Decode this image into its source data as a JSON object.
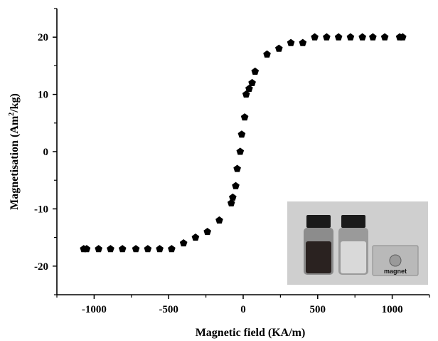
{
  "chart_data": {
    "type": "scatter",
    "xlabel": "Magnetic field (KA/m)",
    "ylabel_parts": [
      "Magnetisation (Am",
      "2",
      "/kg)"
    ],
    "xlim": [
      -1250,
      1250
    ],
    "ylim": [
      -25,
      25
    ],
    "xticks": [
      -1000,
      -500,
      0,
      500,
      1000
    ],
    "yticks": [
      -20,
      -10,
      0,
      10,
      20
    ],
    "grid": false,
    "marker": "pentagon",
    "marker_color": "#000000",
    "series": [
      {
        "points": [
          [
            -1070,
            -17
          ],
          [
            -1050,
            -17
          ],
          [
            -970,
            -17
          ],
          [
            -890,
            -17
          ],
          [
            -810,
            -17
          ],
          [
            -720,
            -17
          ],
          [
            -640,
            -17
          ],
          [
            -560,
            -17
          ],
          [
            -480,
            -17
          ],
          [
            -400,
            -16
          ],
          [
            -320,
            -15
          ],
          [
            -240,
            -14
          ],
          [
            -160,
            -12
          ],
          [
            -80,
            -9
          ],
          [
            -70,
            -8
          ],
          [
            -50,
            -6
          ],
          [
            -40,
            -3
          ],
          [
            -20,
            0
          ],
          [
            -10,
            3
          ],
          [
            10,
            6
          ],
          [
            20,
            10
          ],
          [
            40,
            11
          ],
          [
            60,
            12
          ],
          [
            80,
            14
          ],
          [
            160,
            17
          ],
          [
            240,
            18
          ],
          [
            320,
            19
          ],
          [
            400,
            19
          ],
          [
            480,
            20
          ],
          [
            560,
            20
          ],
          [
            640,
            20
          ],
          [
            720,
            20
          ],
          [
            800,
            20
          ],
          [
            870,
            20
          ],
          [
            950,
            20
          ],
          [
            1050,
            20
          ],
          [
            1070,
            20
          ]
        ]
      }
    ]
  },
  "inset": {
    "label": "magnet",
    "colors": {
      "background": "#cfcfcf",
      "vial_dark": "#2a2220",
      "vial_clear": "#d9d9d9",
      "cap": "#1a1a1a",
      "magnet_block": "#b9b9b9"
    }
  }
}
